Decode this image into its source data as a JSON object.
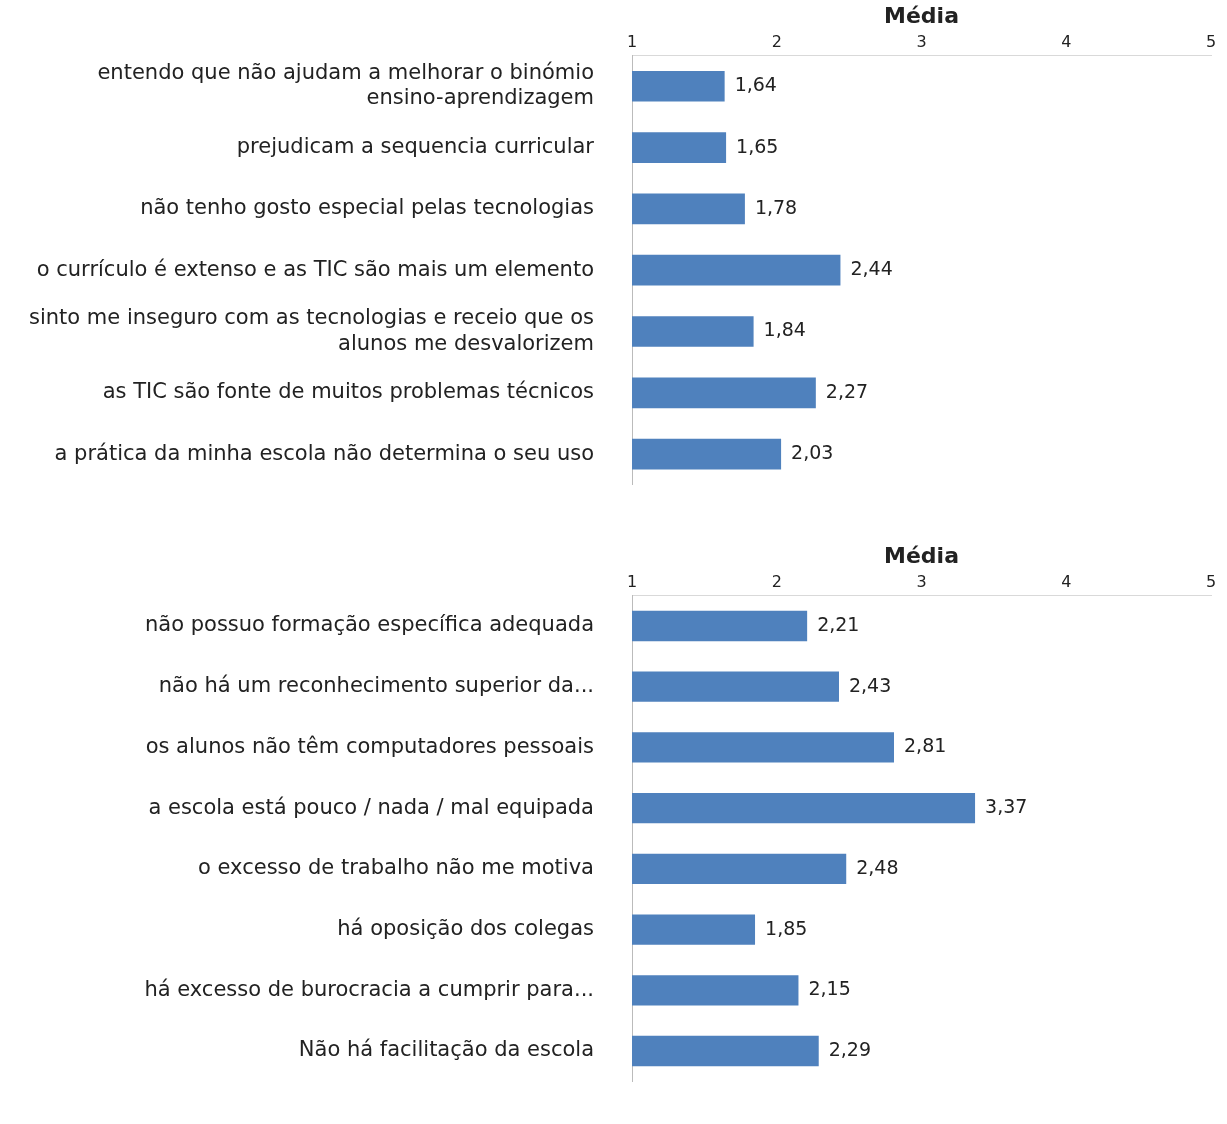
{
  "chart_data": [
    {
      "type": "bar",
      "orientation": "horizontal",
      "xlabel": "Média",
      "categories": [
        "entendo que não ajudam a melhorar o binómio ensino-aprendizagem",
        "prejudicam a sequencia curricular",
        "não tenho gosto especial pelas tecnologias",
        "o currículo é extenso e as TIC são mais um elemento",
        "sinto me inseguro com as tecnologias e receio que os alunos me desvalorizem",
        "as TIC são fonte de muitos problemas técnicos",
        "a prática da minha escola não determina o seu uso"
      ],
      "values": [
        1.64,
        1.65,
        1.78,
        2.44,
        1.84,
        2.27,
        2.03
      ],
      "value_labels": [
        "1,64",
        "1,65",
        "1,78",
        "2,44",
        "1,84",
        "2,27",
        "2,03"
      ],
      "color": "#4f81bd",
      "xlim": [
        1,
        5
      ],
      "xticks": [
        1,
        2,
        3,
        4,
        5
      ]
    },
    {
      "type": "bar",
      "orientation": "horizontal",
      "xlabel": "Média",
      "categories": [
        "não possuo formação específica adequada",
        "não há um reconhecimento superior da...",
        "os alunos não têm computadores pessoais",
        "a escola está pouco / nada / mal equipada",
        "o excesso de trabalho não me motiva",
        "há oposição dos colegas",
        "há excesso de burocracia a cumprir para...",
        "Não há facilitação da escola"
      ],
      "values": [
        2.21,
        2.43,
        2.81,
        3.37,
        2.48,
        1.85,
        2.15,
        2.29
      ],
      "value_labels": [
        "2,21",
        "2,43",
        "2,81",
        "3,37",
        "2,48",
        "1,85",
        "2,15",
        "2,29"
      ],
      "color": "#4f81bd",
      "xlim": [
        1,
        5
      ],
      "xticks": [
        1,
        2,
        3,
        4,
        5
      ]
    }
  ]
}
